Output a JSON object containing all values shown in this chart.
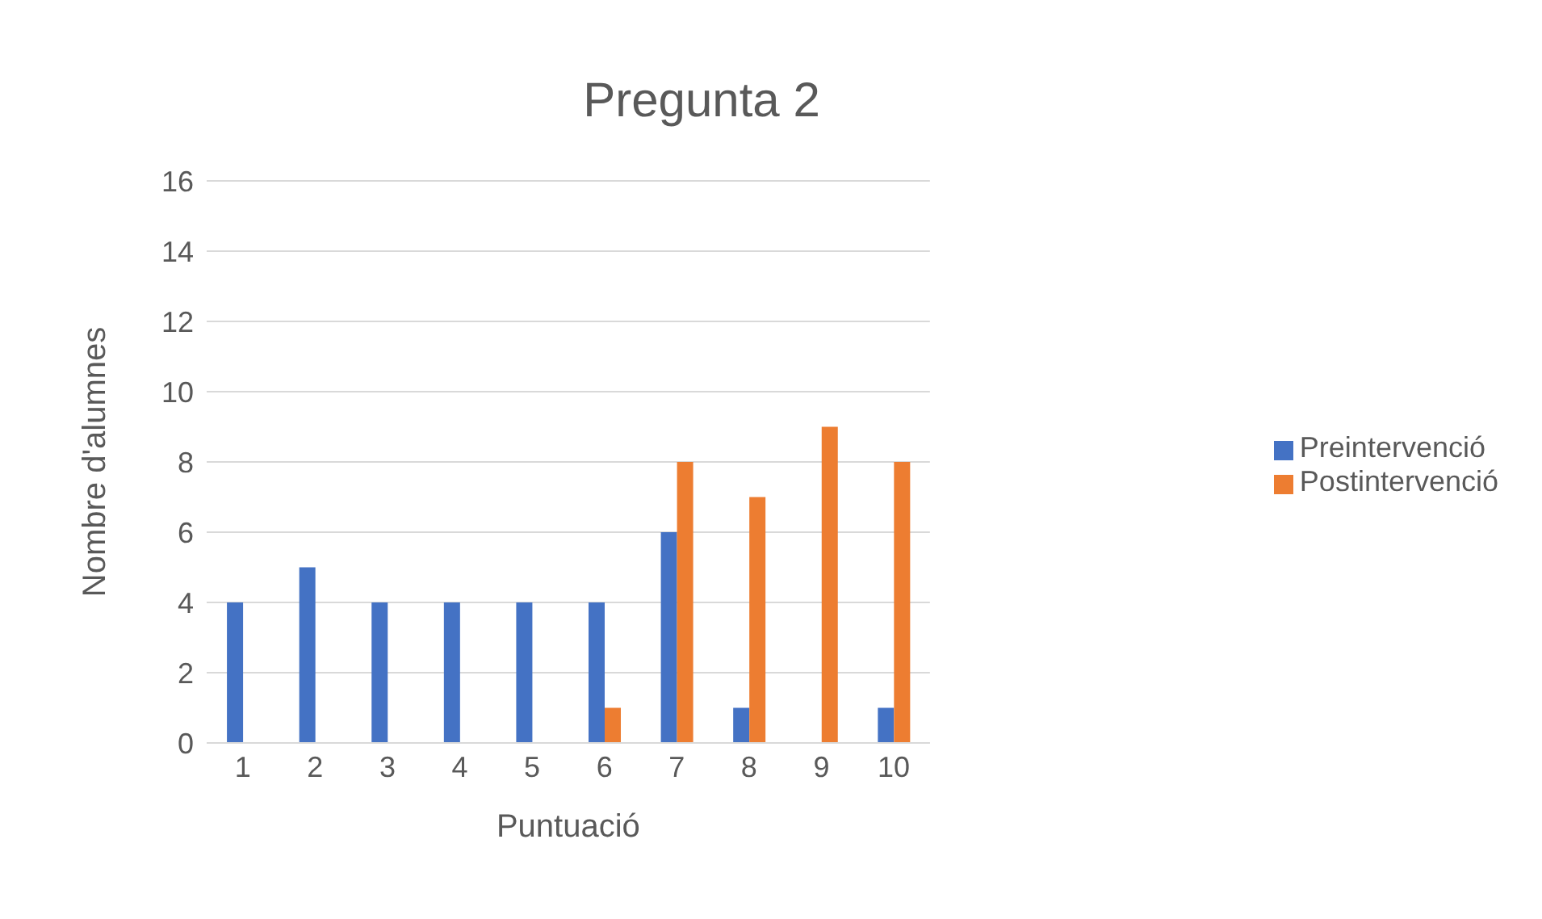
{
  "chart_data": {
    "type": "bar",
    "title": "Pregunta 2",
    "xlabel": "Puntuació",
    "ylabel": "Nombre d'alumnes",
    "categories": [
      "1",
      "2",
      "3",
      "4",
      "5",
      "6",
      "7",
      "8",
      "9",
      "10"
    ],
    "series": [
      {
        "name": "Preintervenció",
        "color": "#4472c4",
        "values": [
          4,
          5,
          4,
          4,
          4,
          4,
          6,
          1,
          0,
          1
        ]
      },
      {
        "name": "Postintervenció",
        "color": "#ed7d31",
        "values": [
          0,
          0,
          0,
          0,
          0,
          1,
          8,
          7,
          9,
          8
        ]
      }
    ],
    "ylim": [
      0,
      16
    ],
    "yticks": [
      0,
      2,
      4,
      6,
      8,
      10,
      12,
      14,
      16
    ],
    "grid": "y",
    "legend": "right"
  }
}
